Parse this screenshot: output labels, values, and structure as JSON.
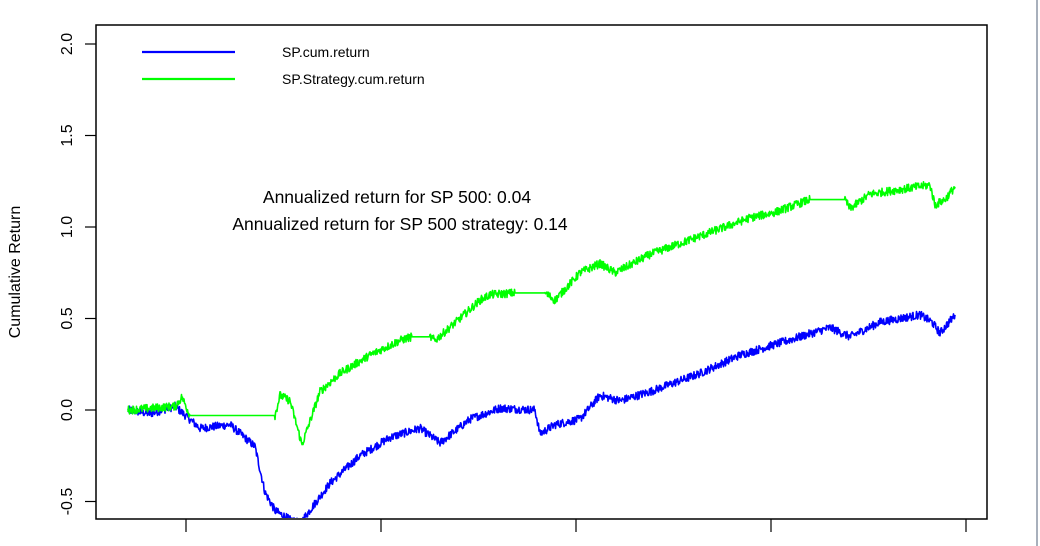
{
  "chart_data": {
    "type": "line",
    "title": "",
    "xlabel": "",
    "ylabel": "Cumulative Return",
    "ylim": [
      -0.6,
      2.1
    ],
    "yticks": [
      -0.5,
      0.0,
      0.5,
      1.0,
      1.5,
      2.0
    ],
    "ytick_labels": [
      "-0.5",
      "0.0",
      "0.5",
      "1.0",
      "1.5",
      "2.0"
    ],
    "xticks_count": 5,
    "xtick_labels": [],
    "grid": false,
    "legend_position": "top-left",
    "series": [
      {
        "name": "SP.cum.return",
        "color": "#0000ff",
        "points": [
          [
            0,
            0.0
          ],
          [
            22,
            -0.02
          ],
          [
            47,
            0.02
          ],
          [
            72,
            -0.1
          ],
          [
            102,
            -0.08
          ],
          [
            127,
            -0.2
          ],
          [
            137,
            -0.45
          ],
          [
            147,
            -0.55
          ],
          [
            162,
            -0.6
          ],
          [
            172,
            -0.62
          ],
          [
            202,
            -0.4
          ],
          [
            232,
            -0.25
          ],
          [
            262,
            -0.15
          ],
          [
            292,
            -0.1
          ],
          [
            312,
            -0.18
          ],
          [
            342,
            -0.05
          ],
          [
            372,
            0.01
          ],
          [
            407,
            0.0
          ],
          [
            412,
            -0.13
          ],
          [
            427,
            -0.08
          ],
          [
            452,
            -0.05
          ],
          [
            472,
            0.08
          ],
          [
            492,
            0.05
          ],
          [
            522,
            0.1
          ],
          [
            572,
            0.2
          ],
          [
            612,
            0.3
          ],
          [
            642,
            0.35
          ],
          [
            672,
            0.4
          ],
          [
            702,
            0.45
          ],
          [
            722,
            0.4
          ],
          [
            752,
            0.48
          ],
          [
            792,
            0.52
          ],
          [
            804,
            0.48
          ],
          [
            812,
            0.42
          ],
          [
            827,
            0.52
          ]
        ]
      },
      {
        "name": "SP.Strategy.cum.return",
        "color": "#00ff00",
        "points": [
          [
            0,
            0.0
          ],
          [
            47,
            0.02
          ],
          [
            54,
            0.07
          ],
          [
            62,
            -0.03
          ],
          [
            147,
            -0.03
          ],
          [
            152,
            0.08
          ],
          [
            162,
            0.05
          ],
          [
            174,
            -0.19
          ],
          [
            192,
            0.1
          ],
          [
            212,
            0.2
          ],
          [
            242,
            0.3
          ],
          [
            272,
            0.38
          ],
          [
            284,
            0.4
          ],
          [
            302,
            0.4
          ],
          [
            307,
            0.38
          ],
          [
            332,
            0.5
          ],
          [
            352,
            0.6
          ],
          [
            362,
            0.63
          ],
          [
            387,
            0.64
          ],
          [
            417,
            0.64
          ],
          [
            427,
            0.6
          ],
          [
            452,
            0.75
          ],
          [
            472,
            0.8
          ],
          [
            487,
            0.75
          ],
          [
            522,
            0.85
          ],
          [
            572,
            0.95
          ],
          [
            622,
            1.05
          ],
          [
            647,
            1.08
          ],
          [
            682,
            1.15
          ],
          [
            717,
            1.15
          ],
          [
            722,
            1.1
          ],
          [
            742,
            1.18
          ],
          [
            802,
            1.23
          ],
          [
            807,
            1.12
          ],
          [
            817,
            1.15
          ],
          [
            827,
            1.22
          ]
        ]
      }
    ],
    "flat_segments_note": "Strategy series is flat where out of market",
    "annotations": [
      "Annualized return for SP 500: 0.04",
      "Annualized return for SP 500 strategy: 0.14"
    ]
  },
  "legend": {
    "items": [
      {
        "label": "SP.cum.return",
        "color": "#0000ff"
      },
      {
        "label": "SP.Strategy.cum.return",
        "color": "#00ff00"
      }
    ]
  },
  "annotations": {
    "line1": "Annualized return for SP 500: 0.04",
    "line2": "Annualized return for SP 500 strategy: 0.14"
  },
  "axes": {
    "ylabel": "Cumulative Return",
    "yticks": [
      "-0.5",
      "0.0",
      "0.5",
      "1.0",
      "1.5",
      "2.0"
    ]
  }
}
